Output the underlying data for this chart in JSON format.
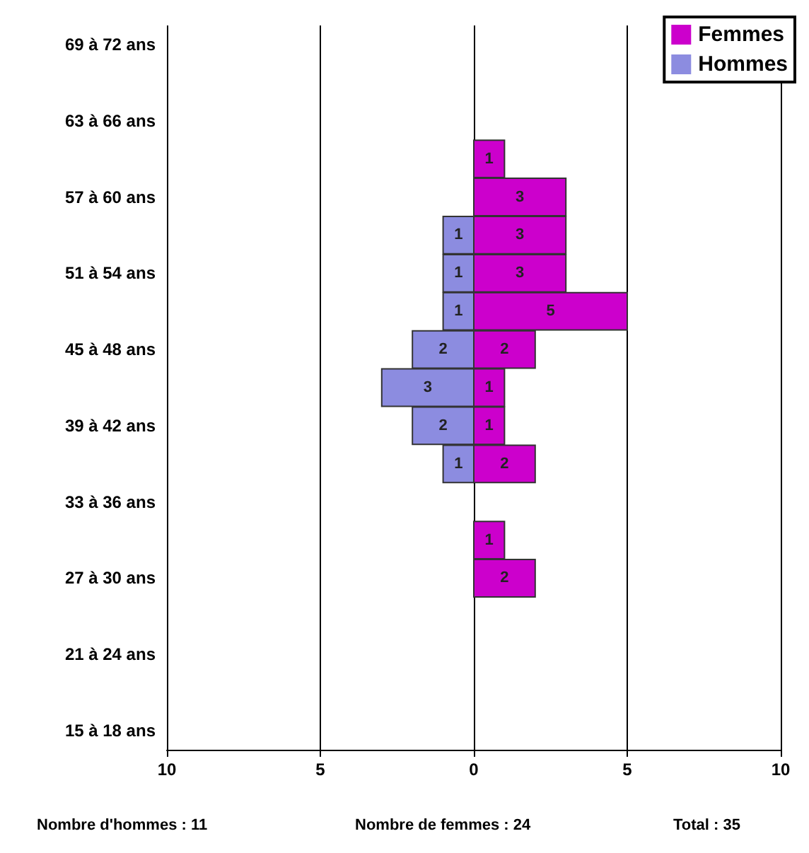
{
  "chart_data": {
    "type": "bar",
    "orientation": "horizontal",
    "data_labels": true,
    "categories": [
      "69 à 72 ans",
      null,
      "63 à 66 ans",
      null,
      "57 à 60 ans",
      null,
      "51 à 54 ans",
      null,
      "45 à 48 ans",
      null,
      "39 à 42 ans",
      null,
      "33 à 36 ans",
      null,
      "27 à 30 ans",
      null,
      "21 à 24 ans",
      null,
      "15 à 18 ans"
    ],
    "series": [
      {
        "name": "Femmes",
        "color": "#cc00cc",
        "values": [
          null,
          null,
          null,
          1,
          3,
          3,
          3,
          5,
          2,
          1,
          1,
          2,
          null,
          1,
          2,
          null,
          null,
          null,
          null
        ]
      },
      {
        "name": "Hommes",
        "color": "#8c8ce0",
        "values": [
          null,
          null,
          null,
          null,
          null,
          1,
          1,
          1,
          2,
          3,
          2,
          1,
          null,
          null,
          null,
          null,
          null,
          null,
          null
        ],
        "base": [
          null,
          null,
          null,
          null,
          null,
          -1,
          -1,
          -1,
          -2,
          -3,
          -2,
          -1,
          null,
          null,
          null,
          null,
          null,
          null,
          null
        ]
      }
    ],
    "xlim": [
      -10,
      10
    ],
    "xticks": [
      {
        "value": -10,
        "label": "10"
      },
      {
        "value": -5,
        "label": "5"
      },
      0,
      5,
      10
    ],
    "grid": "x",
    "legend": "top right",
    "annotations": [
      "Nombre d'hommes : 11",
      "Nombre de femmes : 24",
      "Total : 35"
    ]
  }
}
